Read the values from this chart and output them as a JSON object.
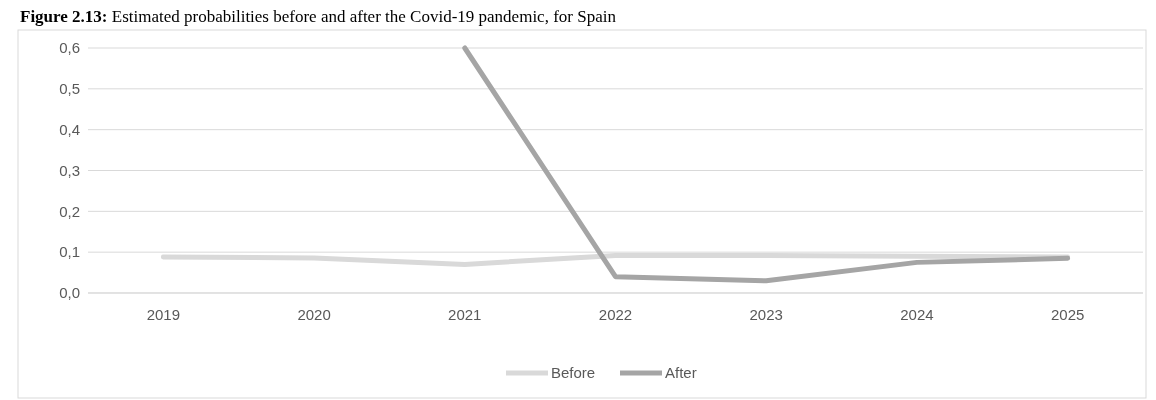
{
  "chart_data": {
    "type": "line",
    "title": "Figure 2.13: Estimated probabilities before and after the Covid-19 pandemic, for Spain",
    "categories": [
      "2019",
      "2020",
      "2021",
      "2022",
      "2023",
      "2024",
      "2025"
    ],
    "series": [
      {
        "name": "Before",
        "color": "#d9d9d9",
        "values": [
          0.088,
          0.086,
          0.07,
          0.092,
          0.092,
          0.09,
          0.088
        ]
      },
      {
        "name": "After",
        "color": "#a5a5a5",
        "values": [
          null,
          null,
          0.6,
          0.04,
          0.03,
          0.075,
          0.085
        ]
      }
    ],
    "ylim": [
      0,
      0.6
    ],
    "yticks": [
      {
        "value": 0,
        "label": "0,0"
      },
      {
        "value": 0.1,
        "label": "0,1"
      },
      {
        "value": 0.2,
        "label": "0,2"
      },
      {
        "value": 0.3,
        "label": "0,3"
      },
      {
        "value": 0.4,
        "label": "0,4"
      },
      {
        "value": 0.5,
        "label": "0,5"
      },
      {
        "value": 0.6,
        "label": "0,6"
      }
    ],
    "grid": "y",
    "legend": "bottom",
    "marker": "none",
    "line_style": "solid"
  }
}
